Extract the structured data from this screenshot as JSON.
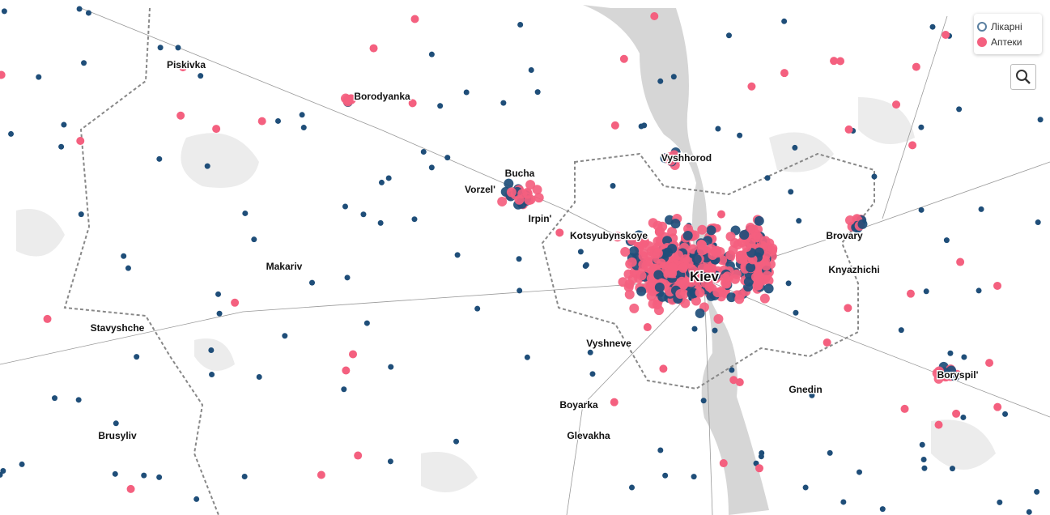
{
  "legend": {
    "items": [
      "Лікарні",
      "Аптеки"
    ]
  },
  "places": [
    "Piskivka",
    "Borodyanka",
    "Bucha",
    "Vorzel'",
    "Irpin'",
    "Vyshhorod",
    "Kotsyubynskoye",
    "Kiev",
    "Brovary",
    "Knyazhichi",
    "Makariv",
    "Stavyshche",
    "Vyshneve",
    "Boryspil'",
    "Gnedin",
    "Boyarka",
    "Glevakha",
    "Brusyliv"
  ]
}
